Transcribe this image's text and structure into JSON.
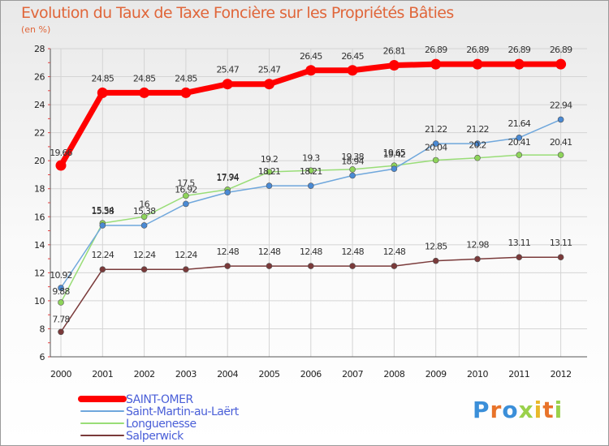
{
  "chart_data": {
    "type": "line",
    "title": "Evolution du Taux de Taxe Foncière sur les Propriétés Bâties",
    "subtitle": "(en %)",
    "xlabel": "",
    "ylabel": "(en %)",
    "ylim": [
      6,
      28
    ],
    "yticks": [
      6,
      8,
      10,
      12,
      14,
      16,
      18,
      20,
      22,
      24,
      26,
      28
    ],
    "grid": true,
    "categories": [
      "2000",
      "2001",
      "2002",
      "2003",
      "2004",
      "2005",
      "2006",
      "2007",
      "2008",
      "2009",
      "2010",
      "2011",
      "2012"
    ],
    "legend_position": "bottom-left",
    "series": [
      {
        "name": "SAINT-OMER",
        "color": "#ff0000",
        "values": [
          19.66,
          24.85,
          24.85,
          24.85,
          25.47,
          25.47,
          26.45,
          26.45,
          26.81,
          26.89,
          26.89,
          26.89,
          26.89
        ],
        "labels": [
          "19.66",
          "24.85",
          "24.85",
          "24.85",
          "25.47",
          "25.47",
          "26.45",
          "26.45",
          "26.81",
          "26.89",
          "26.89",
          "26.89",
          "26.89"
        ]
      },
      {
        "name": "Saint-Martin-au-Laërt",
        "color": "#6fa7dc",
        "values": [
          10.92,
          15.38,
          15.38,
          16.92,
          17.74,
          18.21,
          18.21,
          18.94,
          19.42,
          21.22,
          21.22,
          21.64,
          22.94
        ],
        "labels": [
          "10.92",
          "15.38",
          "15.38",
          "16.92",
          "17.74",
          "18.21",
          "18.21",
          "18.94",
          "19.42",
          "21.22",
          "21.22",
          "21.64",
          "22.94"
        ]
      },
      {
        "name": "Longuenesse",
        "color": "#99dd77",
        "values": [
          9.88,
          15.54,
          16,
          17.5,
          17.94,
          19.2,
          19.3,
          19.38,
          19.65,
          20.04,
          20.2,
          20.41,
          20.41
        ],
        "labels": [
          "9.88",
          "15.54",
          "16",
          "17.5",
          "17.94",
          "19.2",
          "19.3",
          "19.38",
          "19.65",
          "20.04",
          "20.2",
          "20.41",
          "20.41"
        ]
      },
      {
        "name": "Salperwick",
        "color": "#7a3a3a",
        "values": [
          7.78,
          12.24,
          12.24,
          12.24,
          12.48,
          12.48,
          12.48,
          12.48,
          12.48,
          12.85,
          12.98,
          13.11,
          13.11
        ],
        "labels": [
          "7.78",
          "12.24",
          "12.24",
          "12.24",
          "12.48",
          "12.48",
          "12.48",
          "12.48",
          "12.48",
          "12.85",
          "12.98",
          "13.11",
          "13.11"
        ]
      }
    ]
  },
  "logo": {
    "text": "Proxiti",
    "colors": [
      "#3b8fd9",
      "#e8732a",
      "#3b8fd9",
      "#9ad14b",
      "#e8b92a",
      "#e8732a",
      "#9ad14b"
    ]
  }
}
